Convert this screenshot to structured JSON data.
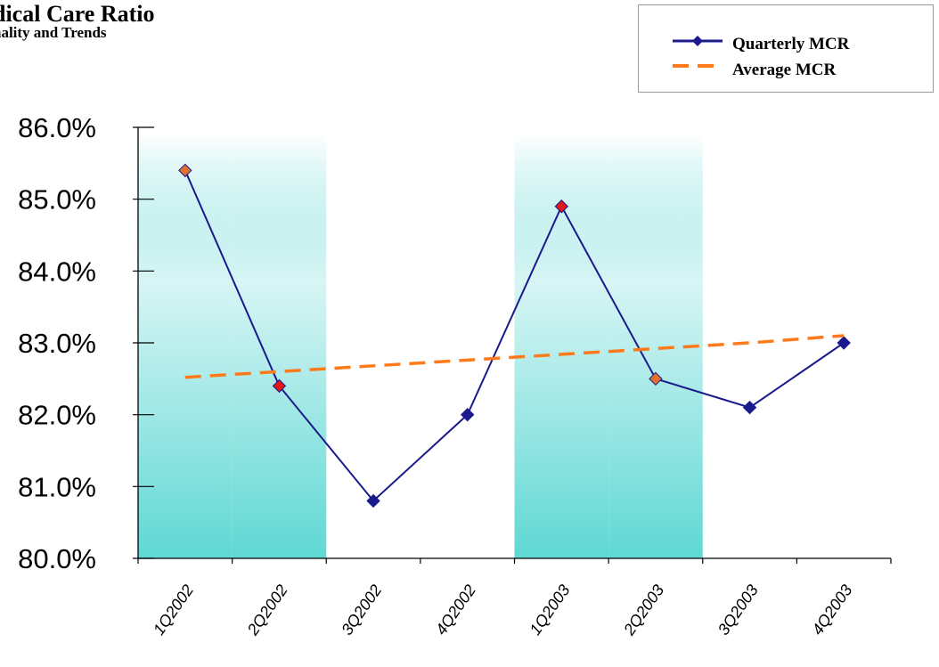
{
  "title": "dical Care Ratio",
  "subtitle": "nality and Trends",
  "legend": {
    "items": [
      {
        "label": "Quarterly MCR",
        "color": "#1a1a8c"
      },
      {
        "label": "Average MCR",
        "color": "#ff7a1a"
      }
    ]
  },
  "chart_data": {
    "type": "line",
    "categories": [
      "1Q2002",
      "2Q2002",
      "3Q2002",
      "4Q2002",
      "1Q2003",
      "2Q2003",
      "3Q2003",
      "4Q2003"
    ],
    "ylim": [
      80.0,
      86.0
    ],
    "yticks": [
      "80.0%",
      "81.0%",
      "82.0%",
      "83.0%",
      "84.0%",
      "85.0%",
      "86.0%"
    ],
    "grid": false,
    "legend_position": "top-right",
    "shaded_categories": [
      "1Q2002",
      "2Q2002",
      "1Q2003",
      "2Q2003"
    ],
    "shade_color": "#5fd8d4",
    "series": [
      {
        "name": "Quarterly MCR",
        "values": [
          85.4,
          82.4,
          80.8,
          82.0,
          84.9,
          82.5,
          82.1,
          83.0
        ],
        "color": "#1a1a8c",
        "marker_colors": [
          "#e07030",
          "#e01818",
          "#1a1a8c",
          "#1a1a8c",
          "#e01818",
          "#e07030",
          "#1a1a8c",
          "#1a1a8c"
        ]
      },
      {
        "name": "Average MCR",
        "values": [
          82.52,
          82.6,
          82.68,
          82.76,
          82.84,
          82.92,
          83.0,
          83.1
        ],
        "color": "#ff7a1a",
        "dashed": true
      }
    ]
  }
}
